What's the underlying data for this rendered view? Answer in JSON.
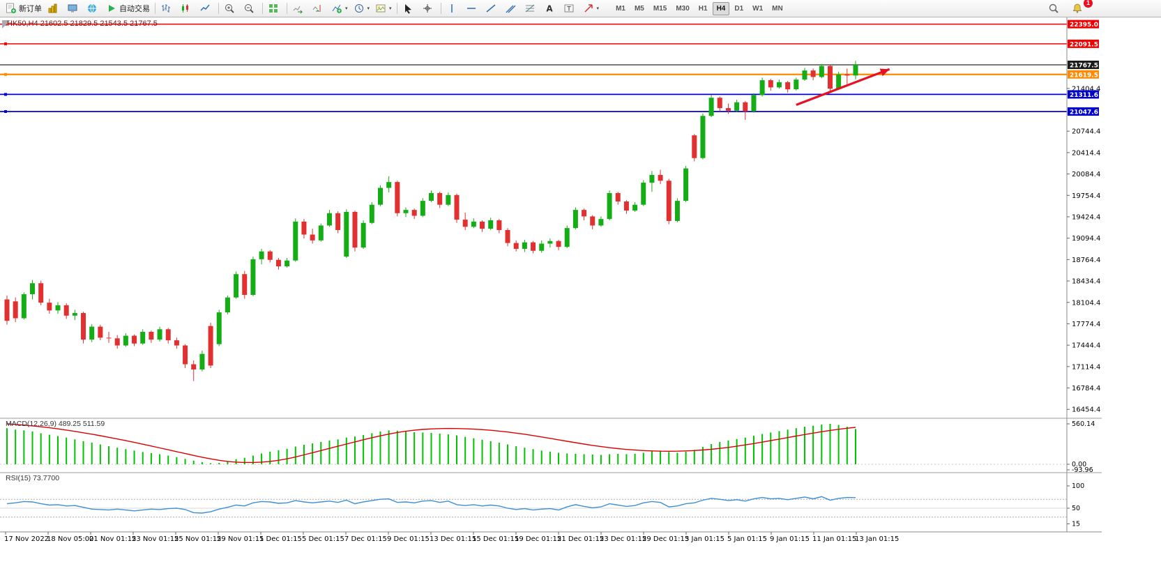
{
  "toolbar": {
    "items": [
      {
        "name": "new-order-button",
        "icon": "new-order-icon",
        "label": "新订单"
      },
      {
        "name": "new-chart-button",
        "icon": "gold-chart-icon"
      },
      {
        "name": "profiles-button",
        "icon": "profiles-icon"
      },
      {
        "name": "community-button",
        "icon": "globe-icon"
      },
      {
        "name": "autotrading-button",
        "icon": "autotrade-icon",
        "label": "自动交易"
      },
      {
        "sep": true
      },
      {
        "name": "bar-chart-button",
        "icon": "bars-icon"
      },
      {
        "name": "candlestick-chart-button",
        "icon": "candles-icon"
      },
      {
        "name": "line-chart-button",
        "icon": "line-chart-icon"
      },
      {
        "sep": true
      },
      {
        "name": "zoom-in-button",
        "icon": "zoom-in-icon"
      },
      {
        "name": "zoom-out-button",
        "icon": "zoom-out-icon"
      },
      {
        "sep": true
      },
      {
        "name": "tile-windows-button",
        "icon": "tile-windows-icon"
      },
      {
        "sep": true
      },
      {
        "name": "auto-scroll-button",
        "icon": "auto-scroll-icon"
      },
      {
        "name": "chart-shift-button",
        "icon": "chart-shift-icon"
      },
      {
        "name": "indicators-button",
        "icon": "indicators-icon",
        "dropdown": true
      },
      {
        "name": "periods-button",
        "icon": "clock-icon",
        "dropdown": true
      },
      {
        "name": "templates-button",
        "icon": "template-icon",
        "dropdown": true
      },
      {
        "sep": true
      },
      {
        "name": "cursor-button",
        "icon": "cursor-icon"
      },
      {
        "name": "crosshair-button",
        "icon": "crosshair-icon"
      },
      {
        "sep": true
      },
      {
        "name": "vertical-line-button",
        "icon": "vertical-line-icon"
      },
      {
        "name": "horizontal-line-button",
        "icon": "horizontal-line-icon"
      },
      {
        "name": "trendline-button",
        "icon": "trendline-icon"
      },
      {
        "name": "channel-button",
        "icon": "channel-icon"
      },
      {
        "name": "fibonacci-button",
        "icon": "fibonacci-icon"
      },
      {
        "name": "text-button",
        "icon": "text-icon"
      },
      {
        "name": "label-button",
        "icon": "label-icon"
      },
      {
        "name": "arrows-button",
        "icon": "arrow-shape-icon",
        "dropdown": true
      }
    ],
    "timeframes": [
      "M1",
      "M5",
      "M15",
      "M30",
      "H1",
      "H4",
      "D1",
      "W1",
      "MN"
    ],
    "active_timeframe": "H4",
    "right_items": [
      {
        "name": "search-button",
        "icon": "search-icon"
      },
      {
        "name": "notifications-button",
        "icon": "bell-icon",
        "badge": "1"
      }
    ]
  },
  "chart": {
    "info_line": "HK50,H4 21602.5 21829.5 21543.5 21767.5",
    "symbol": "HK50",
    "period": "H4",
    "ohlc": {
      "open": "21602.5",
      "high": "21829.5",
      "low": "21543.5",
      "close": "21767.5"
    }
  },
  "chart_data": {
    "type": "candlestick",
    "title": "HK50,H4",
    "colors": {
      "bull": "#15ad15",
      "bear": "#e23030"
    },
    "ylim": [
      16390,
      22480
    ],
    "candles": [
      [
        18150,
        18210,
        17760,
        17820
      ],
      [
        18120,
        18180,
        17800,
        17860
      ],
      [
        17860,
        18260,
        17840,
        18230
      ],
      [
        18230,
        18450,
        18150,
        18400
      ],
      [
        18400,
        18440,
        18060,
        18100
      ],
      [
        18100,
        18160,
        17930,
        17980
      ],
      [
        17980,
        18110,
        17930,
        18060
      ],
      [
        18060,
        18090,
        17850,
        17900
      ],
      [
        17900,
        17990,
        17830,
        17940
      ],
      [
        17940,
        17960,
        17470,
        17530
      ],
      [
        17530,
        17770,
        17490,
        17730
      ],
      [
        17730,
        17760,
        17520,
        17560
      ],
      [
        17560,
        17650,
        17480,
        17550
      ],
      [
        17550,
        17600,
        17390,
        17440
      ],
      [
        17440,
        17630,
        17420,
        17590
      ],
      [
        17590,
        17610,
        17430,
        17470
      ],
      [
        17470,
        17690,
        17450,
        17650
      ],
      [
        17650,
        17670,
        17480,
        17530
      ],
      [
        17530,
        17730,
        17500,
        17690
      ],
      [
        17690,
        17710,
        17470,
        17520
      ],
      [
        17520,
        17560,
        17390,
        17440
      ],
      [
        17440,
        17460,
        17090,
        17150
      ],
      [
        17150,
        17210,
        16890,
        17070
      ],
      [
        17070,
        17360,
        17040,
        17310
      ],
      [
        17740,
        17790,
        17090,
        17130
      ],
      [
        17460,
        17990,
        17430,
        17950
      ],
      [
        17950,
        18210,
        17920,
        18180
      ],
      [
        18180,
        18580,
        18160,
        18540
      ],
      [
        18540,
        18590,
        18160,
        18220
      ],
      [
        18220,
        18810,
        18200,
        18770
      ],
      [
        18770,
        18930,
        18690,
        18890
      ],
      [
        18890,
        18910,
        18720,
        18760
      ],
      [
        18760,
        18790,
        18610,
        18660
      ],
      [
        18660,
        18790,
        18640,
        18750
      ],
      [
        18750,
        19400,
        18730,
        19350
      ],
      [
        19350,
        19390,
        19090,
        19150
      ],
      [
        19150,
        19240,
        19010,
        19060
      ],
      [
        19060,
        19320,
        19040,
        19290
      ],
      [
        19290,
        19530,
        19270,
        19480
      ],
      [
        19480,
        19510,
        19170,
        19220
      ],
      [
        18810,
        19540,
        18790,
        19500
      ],
      [
        19500,
        19520,
        18890,
        18950
      ],
      [
        18950,
        19370,
        18930,
        19330
      ],
      [
        19330,
        19650,
        19310,
        19610
      ],
      [
        19610,
        19910,
        19590,
        19870
      ],
      [
        19870,
        20050,
        19800,
        19960
      ],
      [
        19960,
        19980,
        19430,
        19480
      ],
      [
        19480,
        19570,
        19420,
        19530
      ],
      [
        19530,
        19550,
        19390,
        19440
      ],
      [
        19440,
        19710,
        19420,
        19670
      ],
      [
        19670,
        19830,
        19650,
        19790
      ],
      [
        19790,
        19810,
        19560,
        19610
      ],
      [
        19610,
        19800,
        19590,
        19760
      ],
      [
        19760,
        19780,
        19330,
        19380
      ],
      [
        19380,
        19490,
        19220,
        19270
      ],
      [
        19270,
        19400,
        19250,
        19350
      ],
      [
        19350,
        19370,
        19190,
        19240
      ],
      [
        19240,
        19410,
        19220,
        19370
      ],
      [
        19370,
        19390,
        19170,
        19220
      ],
      [
        19220,
        19250,
        18970,
        19020
      ],
      [
        19020,
        19060,
        18890,
        18930
      ],
      [
        18930,
        19070,
        18880,
        19030
      ],
      [
        19030,
        19050,
        18860,
        18900
      ],
      [
        18900,
        19060,
        18870,
        19010
      ],
      [
        19010,
        19090,
        18950,
        19050
      ],
      [
        19050,
        19070,
        18910,
        18960
      ],
      [
        18960,
        19290,
        18940,
        19250
      ],
      [
        19250,
        19570,
        19230,
        19530
      ],
      [
        19530,
        19550,
        19370,
        19430
      ],
      [
        19430,
        19450,
        19230,
        19290
      ],
      [
        19290,
        19430,
        19270,
        19390
      ],
      [
        19390,
        19830,
        19370,
        19790
      ],
      [
        19790,
        19810,
        19610,
        19660
      ],
      [
        19660,
        19680,
        19470,
        19520
      ],
      [
        19520,
        19650,
        19500,
        19610
      ],
      [
        19610,
        19990,
        19590,
        19950
      ],
      [
        19950,
        20130,
        19810,
        20070
      ],
      [
        20070,
        20150,
        19930,
        19980
      ],
      [
        19980,
        20010,
        19310,
        19360
      ],
      [
        19360,
        19710,
        19340,
        19670
      ],
      [
        19670,
        20210,
        19650,
        20170
      ],
      [
        20680,
        20700,
        20280,
        20330
      ],
      [
        20330,
        21020,
        20310,
        20980
      ],
      [
        20980,
        21300,
        20960,
        21260
      ],
      [
        21260,
        21280,
        21050,
        21100
      ],
      [
        21100,
        21170,
        21010,
        21060
      ],
      [
        21060,
        21230,
        21040,
        21190
      ],
      [
        21190,
        21210,
        20920,
        21050
      ],
      [
        21050,
        21330,
        21030,
        21300
      ],
      [
        21300,
        21570,
        21280,
        21530
      ],
      [
        21530,
        21550,
        21370,
        21420
      ],
      [
        21420,
        21540,
        21400,
        21500
      ],
      [
        21500,
        21520,
        21340,
        21390
      ],
      [
        21390,
        21570,
        21370,
        21540
      ],
      [
        21540,
        21720,
        21520,
        21680
      ],
      [
        21680,
        21710,
        21530,
        21580
      ],
      [
        21580,
        21780,
        21560,
        21750
      ],
      [
        21750,
        21760,
        21330,
        21400
      ],
      [
        21400,
        21660,
        21380,
        21620
      ],
      [
        21620,
        21710,
        21470,
        21602.5
      ],
      [
        21602.5,
        21829.5,
        21543.5,
        21767.5
      ]
    ],
    "x_labels": [
      "17 Nov 2022",
      "18 Nov 05:00",
      "21 Nov 01:15",
      "23 Nov 01:15",
      "25 Nov 01:15",
      "29 Nov 01:15",
      "1 Dec 01:15",
      "5 Dec 01:15",
      "7 Dec 01:15",
      "9 Dec 01:15",
      "13 Dec 01:15",
      "15 Dec 01:15",
      "19 Dec 01:15",
      "21 Dec 01:15",
      "23 Dec 01:15",
      "29 Dec 01:15",
      "3 Jan 01:15",
      "5 Jan 01:15",
      "9 Jan 01:15",
      "11 Jan 01:15",
      "13 Jan 01:15"
    ],
    "y_axis": {
      "line_labels": [
        {
          "text": "22395.0",
          "price": 22395.0,
          "bg": "#f50000",
          "fg": "#ffffff"
        },
        {
          "text": "22091.5",
          "price": 22091.5,
          "bg": "#f50000",
          "fg": "#ffffff"
        },
        {
          "text": "21767.5",
          "price": 21767.5,
          "bg": "#1c1c1c",
          "fg": "#ffffff"
        },
        {
          "text": "21619.5",
          "price": 21619.5,
          "bg": "#ff8a00",
          "fg": "#ffffff"
        },
        {
          "text": "21311.6",
          "price": 21311.6,
          "bg": "#0000cc",
          "fg": "#ffffff"
        },
        {
          "text": "21047.6",
          "price": 21047.6,
          "bg": "#0000cc",
          "fg": "#ffffff"
        }
      ],
      "scale_labels": [
        {
          "text": "21404.4",
          "price": 21404.4
        },
        {
          "text": "20744.4",
          "price": 20744.4
        },
        {
          "text": "20414.4",
          "price": 20414.4
        },
        {
          "text": "20084.4",
          "price": 20084.4
        },
        {
          "text": "19754.4",
          "price": 19754.4
        },
        {
          "text": "19424.4",
          "price": 19424.4
        },
        {
          "text": "19094.4",
          "price": 19094.4
        },
        {
          "text": "18764.4",
          "price": 18764.4
        },
        {
          "text": "18434.4",
          "price": 18434.4
        },
        {
          "text": "18104.4",
          "price": 18104.4
        },
        {
          "text": "17774.4",
          "price": 17774.4
        },
        {
          "text": "17444.4",
          "price": 17444.4
        },
        {
          "text": "17114.4",
          "price": 17114.4
        },
        {
          "text": "16784.4",
          "price": 16784.4
        },
        {
          "text": "16454.4",
          "price": 16454.4
        }
      ]
    },
    "hlines": [
      {
        "price": 22395.0,
        "color": "#f50000",
        "lw": 1.5
      },
      {
        "price": 22091.5,
        "color": "#f50000",
        "lw": 1.5
      },
      {
        "price": 21767.5,
        "color": "#2a2a2a",
        "lw": 1.2
      },
      {
        "price": 21619.5,
        "color": "#ff8a00",
        "lw": 2.2
      },
      {
        "price": 21311.6,
        "color": "#0000cc",
        "lw": 1.8
      },
      {
        "price": 21047.6,
        "color": "#0000cc",
        "lw": 1.8
      }
    ],
    "trend_arrow": {
      "from_candle": 93,
      "from_price": 21150,
      "to_candle": 104,
      "to_price": 21700,
      "color": "#e81123"
    },
    "indicators": [
      {
        "name": "MACD",
        "label": "MACD(12,26,9) 489.25 511.59",
        "hist_color": "#00c400",
        "signal_color": "#dd0000",
        "scale_labels": [
          {
            "text": "560.14",
            "value": 560.14
          },
          {
            "text": "0.00",
            "value": 0
          },
          {
            "text": "-93.96",
            "value": -93.96
          }
        ],
        "histogram": [
          500,
          480,
          470,
          455,
          430,
          410,
          390,
          370,
          345,
          320,
          300,
          275,
          250,
          230,
          210,
          190,
          170,
          155,
          140,
          120,
          100,
          75,
          50,
          30,
          15,
          20,
          40,
          70,
          90,
          120,
          150,
          175,
          195,
          215,
          245,
          270,
          290,
          310,
          330,
          345,
          370,
          385,
          405,
          430,
          455,
          470,
          465,
          455,
          445,
          440,
          435,
          425,
          415,
          400,
          380,
          360,
          340,
          320,
          300,
          275,
          250,
          230,
          210,
          190,
          175,
          160,
          150,
          145,
          140,
          135,
          130,
          140,
          145,
          140,
          145,
          160,
          180,
          190,
          170,
          160,
          175,
          200,
          240,
          280,
          310,
          330,
          350,
          370,
          395,
          420,
          440,
          460,
          480,
          500,
          520,
          535,
          550,
          560,
          545,
          520,
          489.25
        ],
        "signal": [
          560,
          552,
          543,
          532,
          520,
          506,
          491,
          474,
          456,
          437,
          417,
          396,
          374,
          351,
          327,
          303,
          278,
          253,
          227,
          201,
          175,
          149,
          123,
          98,
          75,
          55,
          40,
          30,
          25,
          25,
          30,
          40,
          55,
          75,
          100,
          130,
          160,
          190,
          220,
          250,
          280,
          310,
          340,
          368,
          394,
          418,
          440,
          458,
          472,
          483,
          490,
          494,
          496,
          495,
          492,
          487,
          480,
          471,
          460,
          447,
          432,
          416,
          398,
          379,
          359,
          339,
          319,
          299,
          280,
          262,
          245,
          230,
          217,
          206,
          197,
          190,
          185,
          182,
          181,
          182,
          185,
          190,
          198,
          208,
          220,
          234,
          250,
          268,
          287,
          307,
          328,
          349,
          370,
          391,
          412,
          432,
          451,
          469,
          485,
          499,
          511.59
        ]
      },
      {
        "name": "RSI",
        "label": "RSI(15) 73.7700",
        "line_color": "#3d8fd6",
        "scale_labels": [
          {
            "text": "100",
            "value": 100
          },
          {
            "text": "50",
            "value": 50
          },
          {
            "text": "15",
            "value": 15
          }
        ],
        "levels": [
          70,
          30
        ],
        "values": [
          60,
          62,
          65,
          64,
          60,
          57,
          58,
          55,
          56,
          52,
          48,
          47,
          46,
          48,
          46,
          44,
          46,
          48,
          47,
          49,
          50,
          47,
          40,
          39,
          42,
          48,
          52,
          57,
          55,
          62,
          65,
          64,
          61,
          62,
          67,
          64,
          62,
          64,
          66,
          63,
          68,
          60,
          64,
          67,
          70,
          71,
          63,
          64,
          62,
          66,
          67,
          63,
          66,
          58,
          56,
          58,
          55,
          57,
          55,
          50,
          47,
          49,
          46,
          48,
          49,
          46,
          53,
          58,
          54,
          51,
          53,
          60,
          57,
          54,
          56,
          62,
          65,
          63,
          53,
          55,
          60,
          62,
          68,
          72,
          70,
          67,
          69,
          66,
          71,
          74,
          71,
          72,
          69,
          72,
          75,
          71,
          76,
          68,
          72,
          74,
          73.77
        ]
      }
    ]
  }
}
